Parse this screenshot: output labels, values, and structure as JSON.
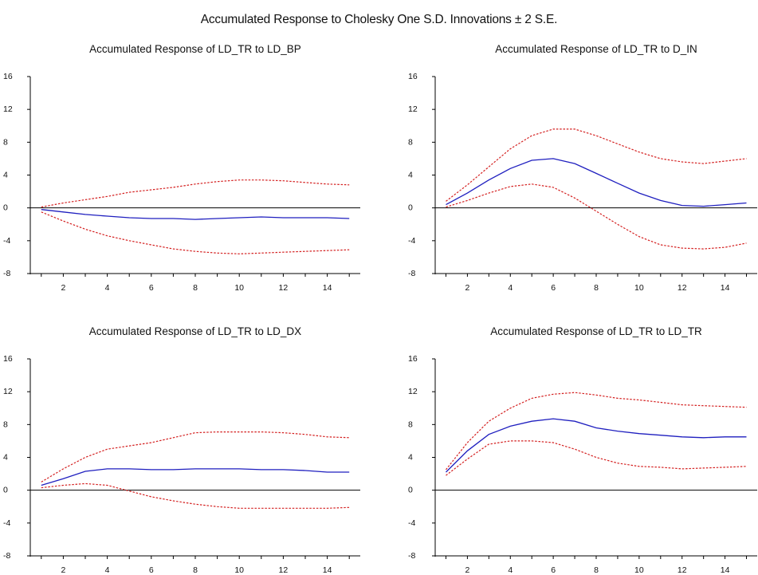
{
  "title": "Accumulated Response to Cholesky One S.D. Innovations ± 2 S.E.",
  "colors": {
    "response": "#1f1fbf",
    "band": "#d42020",
    "axis": "#000000"
  },
  "chart_data": [
    {
      "type": "line",
      "title": "Accumulated Response of LD_TR to LD_BP",
      "x": [
        1,
        2,
        3,
        4,
        5,
        6,
        7,
        8,
        9,
        10,
        11,
        12,
        13,
        14,
        15
      ],
      "xticks": [
        2,
        4,
        6,
        8,
        10,
        12,
        14
      ],
      "yticks": [
        -8,
        -4,
        0,
        4,
        8,
        12,
        16
      ],
      "ylim": [
        -8,
        16
      ],
      "xlim": [
        0.5,
        15.5
      ],
      "series": [
        {
          "role": "response",
          "values": [
            -0.2,
            -0.5,
            -0.8,
            -1.0,
            -1.2,
            -1.3,
            -1.3,
            -1.4,
            -1.3,
            -1.2,
            -1.1,
            -1.2,
            -1.2,
            -1.2,
            -1.3
          ]
        },
        {
          "role": "upper",
          "values": [
            0.1,
            0.6,
            1.0,
            1.4,
            1.9,
            2.2,
            2.5,
            2.9,
            3.2,
            3.4,
            3.4,
            3.3,
            3.1,
            2.9,
            2.8
          ]
        },
        {
          "role": "lower",
          "values": [
            -0.5,
            -1.6,
            -2.6,
            -3.4,
            -4.0,
            -4.5,
            -5.0,
            -5.3,
            -5.5,
            -5.6,
            -5.5,
            -5.4,
            -5.3,
            -5.2,
            -5.1
          ]
        }
      ]
    },
    {
      "type": "line",
      "title": "Accumulated Response of LD_TR to D_IN",
      "x": [
        1,
        2,
        3,
        4,
        5,
        6,
        7,
        8,
        9,
        10,
        11,
        12,
        13,
        14,
        15
      ],
      "xticks": [
        2,
        4,
        6,
        8,
        10,
        12,
        14
      ],
      "yticks": [
        -8,
        -4,
        0,
        4,
        8,
        12,
        16
      ],
      "ylim": [
        -8,
        16
      ],
      "xlim": [
        0.5,
        15.5
      ],
      "series": [
        {
          "role": "response",
          "values": [
            0.4,
            1.8,
            3.4,
            4.8,
            5.8,
            6.0,
            5.4,
            4.2,
            3.0,
            1.8,
            0.9,
            0.3,
            0.2,
            0.4,
            0.6
          ]
        },
        {
          "role": "upper",
          "values": [
            0.8,
            2.8,
            5.0,
            7.2,
            8.8,
            9.6,
            9.6,
            8.8,
            7.8,
            6.8,
            6.0,
            5.6,
            5.4,
            5.7,
            6.0
          ]
        },
        {
          "role": "lower",
          "values": [
            0.1,
            0.9,
            1.8,
            2.6,
            2.9,
            2.5,
            1.2,
            -0.4,
            -2.0,
            -3.5,
            -4.5,
            -4.9,
            -5.0,
            -4.8,
            -4.3
          ]
        }
      ]
    },
    {
      "type": "line",
      "title": "Accumulated Response of LD_TR to LD_DX",
      "x": [
        1,
        2,
        3,
        4,
        5,
        6,
        7,
        8,
        9,
        10,
        11,
        12,
        13,
        14,
        15
      ],
      "xticks": [
        2,
        4,
        6,
        8,
        10,
        12,
        14
      ],
      "yticks": [
        -8,
        -4,
        0,
        4,
        8,
        12,
        16
      ],
      "ylim": [
        -8,
        16
      ],
      "xlim": [
        0.5,
        15.5
      ],
      "series": [
        {
          "role": "response",
          "values": [
            0.6,
            1.4,
            2.3,
            2.6,
            2.6,
            2.5,
            2.5,
            2.6,
            2.6,
            2.6,
            2.5,
            2.5,
            2.4,
            2.2,
            2.2
          ]
        },
        {
          "role": "upper",
          "values": [
            1.0,
            2.6,
            4.0,
            5.0,
            5.4,
            5.8,
            6.4,
            7.0,
            7.1,
            7.1,
            7.1,
            7.0,
            6.8,
            6.5,
            6.4
          ]
        },
        {
          "role": "lower",
          "values": [
            0.3,
            0.6,
            0.8,
            0.6,
            -0.1,
            -0.8,
            -1.3,
            -1.7,
            -2.0,
            -2.2,
            -2.2,
            -2.2,
            -2.2,
            -2.2,
            -2.1
          ]
        }
      ]
    },
    {
      "type": "line",
      "title": "Accumulated Response of LD_TR to LD_TR",
      "x": [
        1,
        2,
        3,
        4,
        5,
        6,
        7,
        8,
        9,
        10,
        11,
        12,
        13,
        14,
        15
      ],
      "xticks": [
        2,
        4,
        6,
        8,
        10,
        12,
        14
      ],
      "yticks": [
        -8,
        -4,
        0,
        4,
        8,
        12,
        16
      ],
      "ylim": [
        -8,
        16
      ],
      "xlim": [
        0.5,
        15.5
      ],
      "series": [
        {
          "role": "response",
          "values": [
            2.2,
            4.8,
            6.8,
            7.8,
            8.4,
            8.7,
            8.4,
            7.6,
            7.2,
            6.9,
            6.7,
            6.5,
            6.4,
            6.5,
            6.5
          ]
        },
        {
          "role": "upper",
          "values": [
            2.5,
            5.8,
            8.4,
            10.0,
            11.2,
            11.7,
            11.9,
            11.6,
            11.2,
            11.0,
            10.7,
            10.4,
            10.3,
            10.2,
            10.1
          ]
        },
        {
          "role": "lower",
          "values": [
            1.8,
            3.8,
            5.6,
            6.0,
            6.0,
            5.8,
            5.0,
            4.0,
            3.3,
            2.9,
            2.8,
            2.6,
            2.7,
            2.8,
            2.9
          ]
        }
      ]
    }
  ]
}
